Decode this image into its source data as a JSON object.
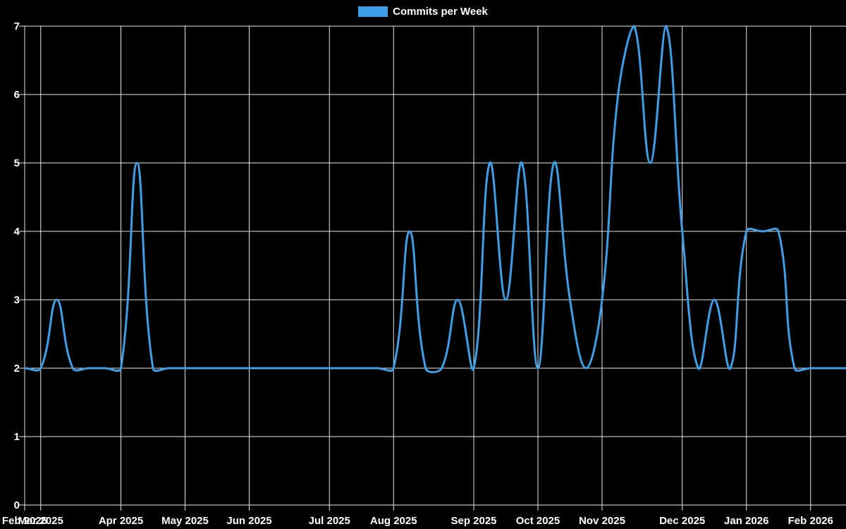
{
  "legend": {
    "label": "Commits per Week"
  },
  "chart_data": {
    "type": "line",
    "title": "",
    "xlabel": "",
    "ylabel": "",
    "series": [
      {
        "name": "Commits per Week",
        "color": "#3d9fe8",
        "x_unit": "week_index",
        "values": [
          2,
          2,
          3,
          2,
          2,
          2,
          2,
          5,
          2,
          2,
          2,
          2,
          2,
          2,
          2,
          2,
          2,
          2,
          2,
          2,
          2,
          2,
          2,
          2,
          4,
          2,
          2,
          3,
          2,
          5,
          3,
          5,
          2,
          5,
          3,
          2,
          3,
          6,
          7,
          5,
          7,
          4,
          2,
          3,
          2,
          4,
          4,
          4,
          2,
          2,
          2,
          2,
          2
        ]
      }
    ],
    "x_ticks": [
      {
        "label": "Feb 2025",
        "week": 0
      },
      {
        "label": "Mar 2025",
        "week": 1
      },
      {
        "label": "Apr 2025",
        "week": 6
      },
      {
        "label": "May 2025",
        "week": 10
      },
      {
        "label": "Jun 2025",
        "week": 14
      },
      {
        "label": "Jul 2025",
        "week": 19
      },
      {
        "label": "Aug 2025",
        "week": 23
      },
      {
        "label": "Sep 2025",
        "week": 28
      },
      {
        "label": "Oct 2025",
        "week": 32
      },
      {
        "label": "Nov 2025",
        "week": 36
      },
      {
        "label": "Dec 2025",
        "week": 41
      },
      {
        "label": "Jan 2026",
        "week": 45
      },
      {
        "label": "Feb 2026",
        "week": 49
      }
    ],
    "y_ticks": [
      "0",
      "1",
      "2",
      "3",
      "4",
      "5",
      "6",
      "7"
    ],
    "ylim": [
      0,
      7
    ],
    "grid": true,
    "legend_position": "top",
    "line_tension": 0.4,
    "colors": {
      "background": "#000000",
      "grid": "#e8e8e8",
      "text": "#ffffff",
      "line": "#3d9fe8"
    }
  }
}
